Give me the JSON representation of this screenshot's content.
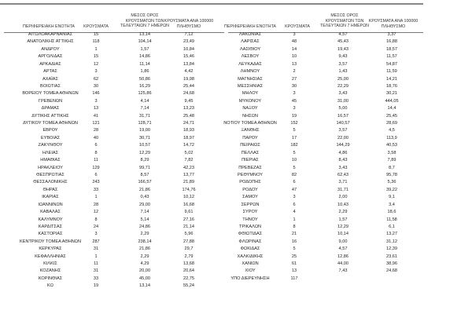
{
  "headers": {
    "region": "ΠΕΡΙΦΕΡΕΙΑΚΗ ΕΝΟΤΗΤΑ",
    "cases": "ΚΡΟΥΣΜΑΤΑ",
    "avg_line1": "ΜΕΣΟΣ ΟΡΟΣ",
    "avg_line2": "ΚΡΟΥΣΜΑΤΩΝ ΤΩΝ",
    "avg_line3": "ΤΕΛΕΥΤΑΙΩΝ 7 ΗΜΕΡΩΝ",
    "per100k_line1": "ΚΡΟΥΣΜΑΤΑ ΑΝΑ 100000",
    "per100k_line2": "ΠΛΗΘΥΣΜΟ"
  },
  "left_rows": [
    [
      "ΑΙΤΩΛΟΑΚΑΡΝΑΝΙΑΣ",
      "15",
      "13,14",
      "7,12"
    ],
    [
      "ΑΝΑΤΟΛΙΚΗΣ ΑΤΤΙΚΗΣ",
      "118",
      "104,14",
      "23,49"
    ],
    [
      "ΑΝΔΡΟΥ",
      "1",
      "1,57",
      "10,84"
    ],
    [
      "ΑΡΓΟΛΙΔΑΣ",
      "15",
      "14,86",
      "15,46"
    ],
    [
      "ΑΡΚΑΔΙΑΣ",
      "12",
      "11,14",
      "13,84"
    ],
    [
      "ΑΡΤΑΣ",
      "3",
      "1,86",
      "4,42"
    ],
    [
      "ΑΧΑΪΑΣ",
      "62",
      "50,86",
      "19,98"
    ],
    [
      "ΒΟΙΩΤΙΑΣ",
      "30",
      "16,29",
      "25,44"
    ],
    [
      "ΒΟΡΕΙΟΥ ΤΟΜΕΑ ΑΘΗΝΩΝ",
      "146",
      "125,86",
      "24,68"
    ],
    [
      "ΓΡΕΒΕΝΩΝ",
      "3",
      "4,14",
      "9,45"
    ],
    [
      "ΔΡΑΜΑΣ",
      "13",
      "7,14",
      "13,23"
    ],
    [
      "ΔΥΤΙΚΗΣ ΑΤΤΙΚΗΣ",
      "41",
      "31,71",
      "25,48"
    ],
    [
      "ΔΥΤΙΚΟΥ ΤΟΜΕΑ ΑΘΗΝΩΝ",
      "121",
      "128,71",
      "24,71"
    ],
    [
      "ΕΒΡΟΥ",
      "28",
      "19,00",
      "18,93"
    ],
    [
      "ΕΥΒΟΙΑΣ",
      "40",
      "30,71",
      "18,97"
    ],
    [
      "ΖΑΚΥΝΘΟΥ",
      "6",
      "10,57",
      "14,72"
    ],
    [
      "ΗΛΕΙΑΣ",
      "8",
      "12,29",
      "5,02"
    ],
    [
      "ΗΜΑΘΙΑΣ",
      "11",
      "8,29",
      "7,82"
    ],
    [
      "ΗΡΑΚΛΕΙΟΥ",
      "129",
      "99,71",
      "42,23"
    ],
    [
      "ΘΕΣΠΡΩΤΙΑΣ",
      "6",
      "8,57",
      "13,77"
    ],
    [
      "ΘΕΣΣΑΛΟΝΙΚΗΣ",
      "243",
      "166,57",
      "21,89"
    ],
    [
      "ΘΗΡΑΣ",
      "33",
      "21,86",
      "174,76"
    ],
    [
      "ΙΚΑΡΙΑΣ",
      "1",
      "0,43",
      "10,12"
    ],
    [
      "ΙΩΑΝΝΙΝΩΝ",
      "28",
      "29,00",
      "16,68"
    ],
    [
      "ΚΑΒΑΛΑΣ",
      "12",
      "7,14",
      "9,61"
    ],
    [
      "ΚΑΛΥΜΝΟΥ",
      "8",
      "5,14",
      "27,16"
    ],
    [
      "ΚΑΡΔΙΤΣΑΣ",
      "24",
      "24,86",
      "21,14"
    ],
    [
      "ΚΑΣΤΟΡΙΑΣ",
      "3",
      "2,29",
      "5,96"
    ],
    [
      "ΚΕΝΤΡΙΚΟΥ ΤΟΜΕΑ ΑΘΗΝΩΝ",
      "287",
      "238,14",
      "27,88"
    ],
    [
      "ΚΕΡΚΥΡΑΣ",
      "31",
      "21,86",
      "29,7"
    ],
    [
      "ΚΕΦΑΛΛΗΝΙΑΣ",
      "1",
      "2,29",
      "2,79"
    ],
    [
      "ΚΙΛΚΙΣ",
      "11",
      "4,29",
      "13,68"
    ],
    [
      "ΚΟΖΑΝΗΣ",
      "31",
      "20,00",
      "20,64"
    ],
    [
      "ΚΟΡΙΝΘΙΑΣ",
      "33",
      "45,00",
      "22,75"
    ],
    [
      "ΚΩ",
      "19",
      "13,14",
      "55,24"
    ]
  ],
  "right_rows": [
    [
      "ΛΑΚΩΝΙΑΣ",
      "3",
      "4,57",
      "3,37"
    ],
    [
      "ΛΑΡΙΣΑΣ",
      "48",
      "45,43",
      "16,88"
    ],
    [
      "ΛΑΣΙΘΙΟΥ",
      "14",
      "19,43",
      "18,57"
    ],
    [
      "ΛΕΣΒΟΥ",
      "10",
      "9,43",
      "11,57"
    ],
    [
      "ΛΕΥΚΑΔΑΣ",
      "13",
      "3,57",
      "54,87"
    ],
    [
      "ΛΗΜΝΟΥ",
      "2",
      "1,43",
      "11,59"
    ],
    [
      "ΜΑΓΝΗΣΙΑΣ",
      "27",
      "25,00",
      "14,21"
    ],
    [
      "ΜΕΣΣΗΝΙΑΣ",
      "30",
      "22,29",
      "18,76"
    ],
    [
      "ΜΗΛΟΥ",
      "3",
      "3,43",
      "30,21"
    ],
    [
      "ΜΥΚΟΝΟΥ",
      "45",
      "31,00",
      "444,05"
    ],
    [
      "ΝΑΞΟΥ",
      "3",
      "5,00",
      "14,4"
    ],
    [
      "ΝΗΣΩΝ",
      "19",
      "16,57",
      "25,45"
    ],
    [
      "ΝΟΤΙΟΥ ΤΟΜΕΑ ΑΘΗΝΩΝ",
      "152",
      "140,57",
      "28,69"
    ],
    [
      "ΞΑΝΘΗΣ",
      "5",
      "3,57",
      "4,5"
    ],
    [
      "ΠΑΡΟΥ",
      "17",
      "22,00",
      "113,9"
    ],
    [
      "ΠΕΙΡΑΙΩΣ",
      "182",
      "144,29",
      "40,53"
    ],
    [
      "ΠΕΛΛΑΣ",
      "5",
      "4,86",
      "3,58"
    ],
    [
      "ΠΙΕΡΙΑΣ",
      "10",
      "8,43",
      "7,89"
    ],
    [
      "ΠΡΕΒΕΖΑΣ",
      "5",
      "3,43",
      "8,7"
    ],
    [
      "ΡΕΘΥΜΝΟΥ",
      "82",
      "62,43",
      "95,78"
    ],
    [
      "ΡΟΔΟΠΗΣ",
      "6",
      "3,71",
      "5,36"
    ],
    [
      "ΡΟΔΟΥ",
      "47",
      "31,71",
      "39,22"
    ],
    [
      "ΣΑΜΟΥ",
      "3",
      "2,00",
      "9,1"
    ],
    [
      "ΣΕΡΡΩΝ",
      "6",
      "10,43",
      "3,4"
    ],
    [
      "ΣΥΡΟΥ",
      "4",
      "2,29",
      "18,6"
    ],
    [
      "ΤΗΝΟΥ",
      "1",
      "1,57",
      "11,58"
    ],
    [
      "ΤΡΙΚΑΛΩΝ",
      "8",
      "12,29",
      "6,1"
    ],
    [
      "ΦΘΙΩΤΙΔΑΣ",
      "21",
      "10,14",
      "13,27"
    ],
    [
      "ΦΛΩΡΙΝΑΣ",
      "16",
      "9,00",
      "31,12"
    ],
    [
      "ΦΩΚΙΔΑΣ",
      "5",
      "4,57",
      "12,39"
    ],
    [
      "ΧΑΛΚΙΔΙΚΗΣ",
      "25",
      "12,86",
      "23,61"
    ],
    [
      "ΧΑΝΙΩΝ",
      "61",
      "44,00",
      "38,96"
    ],
    [
      "ΧΙΟΥ",
      "13",
      "7,43",
      "24,68"
    ],
    [
      "ΥΠΟ ΔΙΕΡΕΥΝΗΣΗ",
      "117",
      "",
      ""
    ]
  ]
}
